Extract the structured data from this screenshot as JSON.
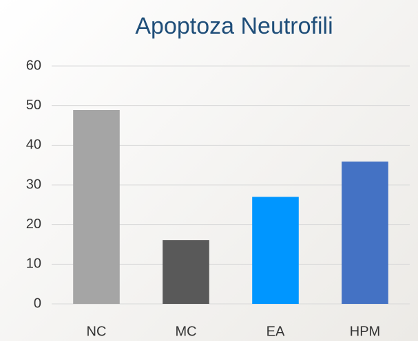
{
  "chart_data": {
    "type": "bar",
    "title": "Apoptoza Neutrofili",
    "categories": [
      "NC",
      "MC",
      "EA",
      "HPM"
    ],
    "values": [
      48.9,
      16.1,
      27,
      35.9
    ],
    "colors": [
      "#a5a5a5",
      "#595959",
      "#0096ff",
      "#4472c4"
    ],
    "ylim": [
      0,
      60
    ],
    "yticks": [
      0,
      10,
      20,
      30,
      40,
      50,
      60
    ],
    "grid": true
  }
}
